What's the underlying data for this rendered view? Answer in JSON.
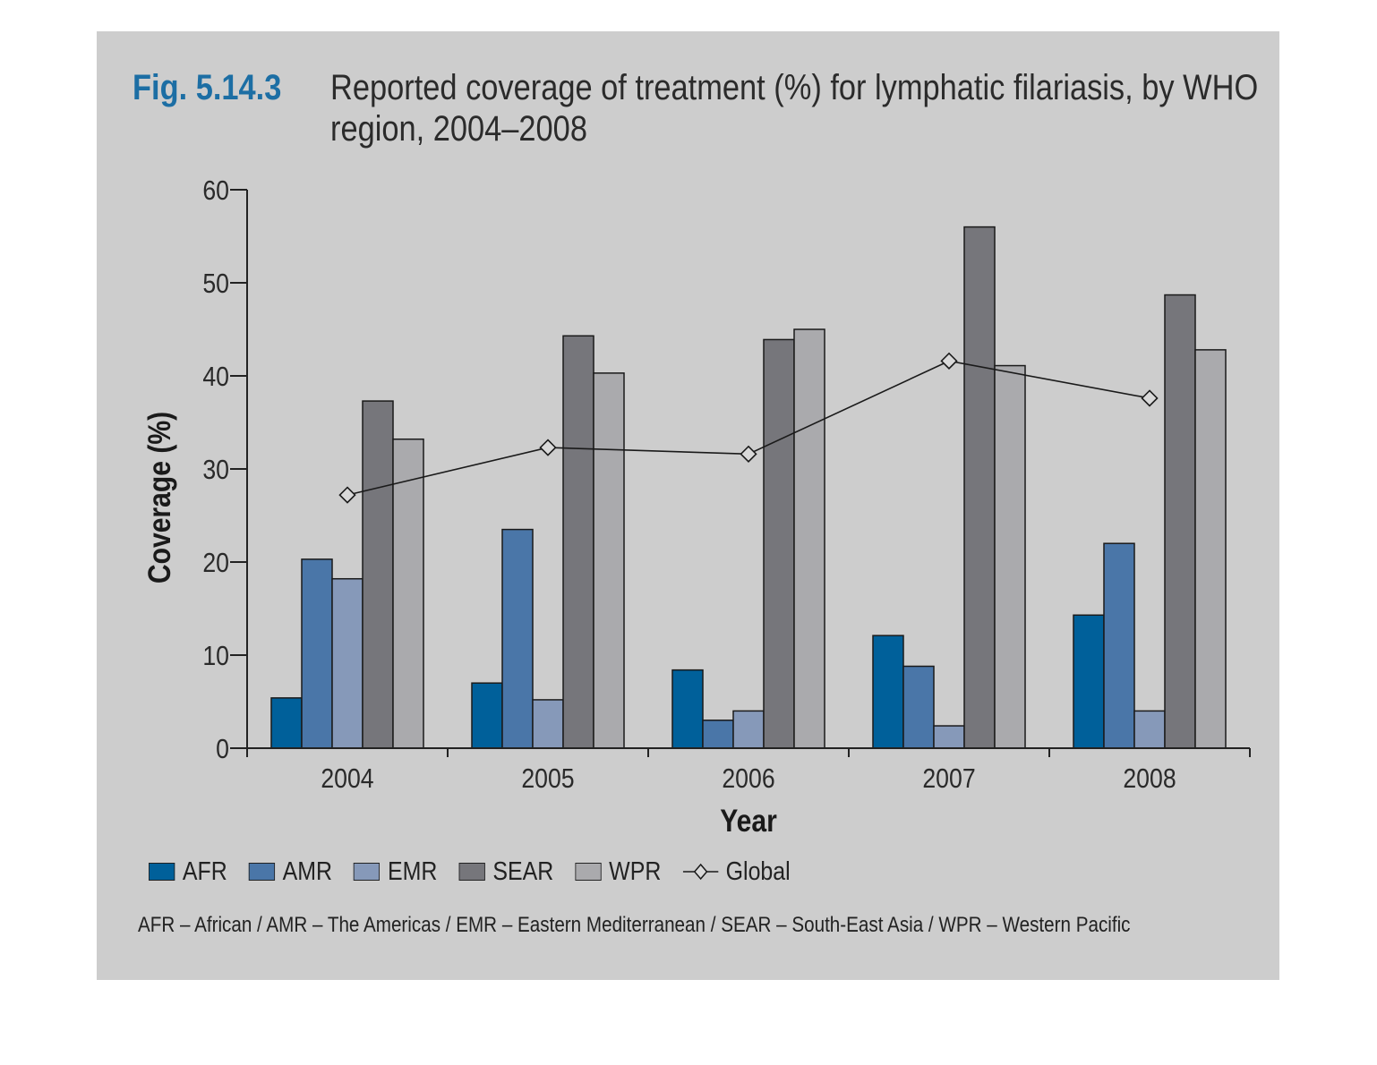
{
  "figure": {
    "label": "Fig. 5.14.3",
    "title": "Reported coverage of treatment (%) for lymphatic filariasis, by WHO region, 2004–2008",
    "note": "AFR – African / AMR – The Americas / EMR – Eastern Mediterranean / SEAR – South-East Asia / WPR – Western Pacific"
  },
  "chart_data": {
    "type": "bar",
    "title": "Reported coverage of treatment (%) for lymphatic filariasis, by WHO region, 2004–2008",
    "xlabel": "Year",
    "ylabel": "Coverage (%)",
    "ylim": [
      0,
      60
    ],
    "yticks": [
      "0",
      "10",
      "20",
      "30",
      "40",
      "50",
      "60"
    ],
    "categories": [
      "2004",
      "2005",
      "2006",
      "2007",
      "2008"
    ],
    "series": [
      {
        "name": "AFR",
        "color": "#00609a",
        "values": [
          5.4,
          7,
          8.4,
          12.1,
          14.3
        ]
      },
      {
        "name": "AMR",
        "color": "#4a76a8",
        "values": [
          20.3,
          23.5,
          3,
          8.8,
          22
        ]
      },
      {
        "name": "EMR",
        "color": "#8699b9",
        "values": [
          18.2,
          5.2,
          4,
          2.4,
          4
        ]
      },
      {
        "name": "SEAR",
        "color": "#76767b",
        "values": [
          37.3,
          44.3,
          43.9,
          56,
          48.7
        ]
      },
      {
        "name": "WPR",
        "color": "#aaaaad",
        "values": [
          33.2,
          40.3,
          45,
          41.1,
          42.8
        ]
      }
    ],
    "line_series": {
      "name": "Global",
      "values": [
        27.2,
        32.3,
        31.6,
        41.6,
        37.6
      ]
    },
    "legend_position": "bottom",
    "grid": false
  }
}
